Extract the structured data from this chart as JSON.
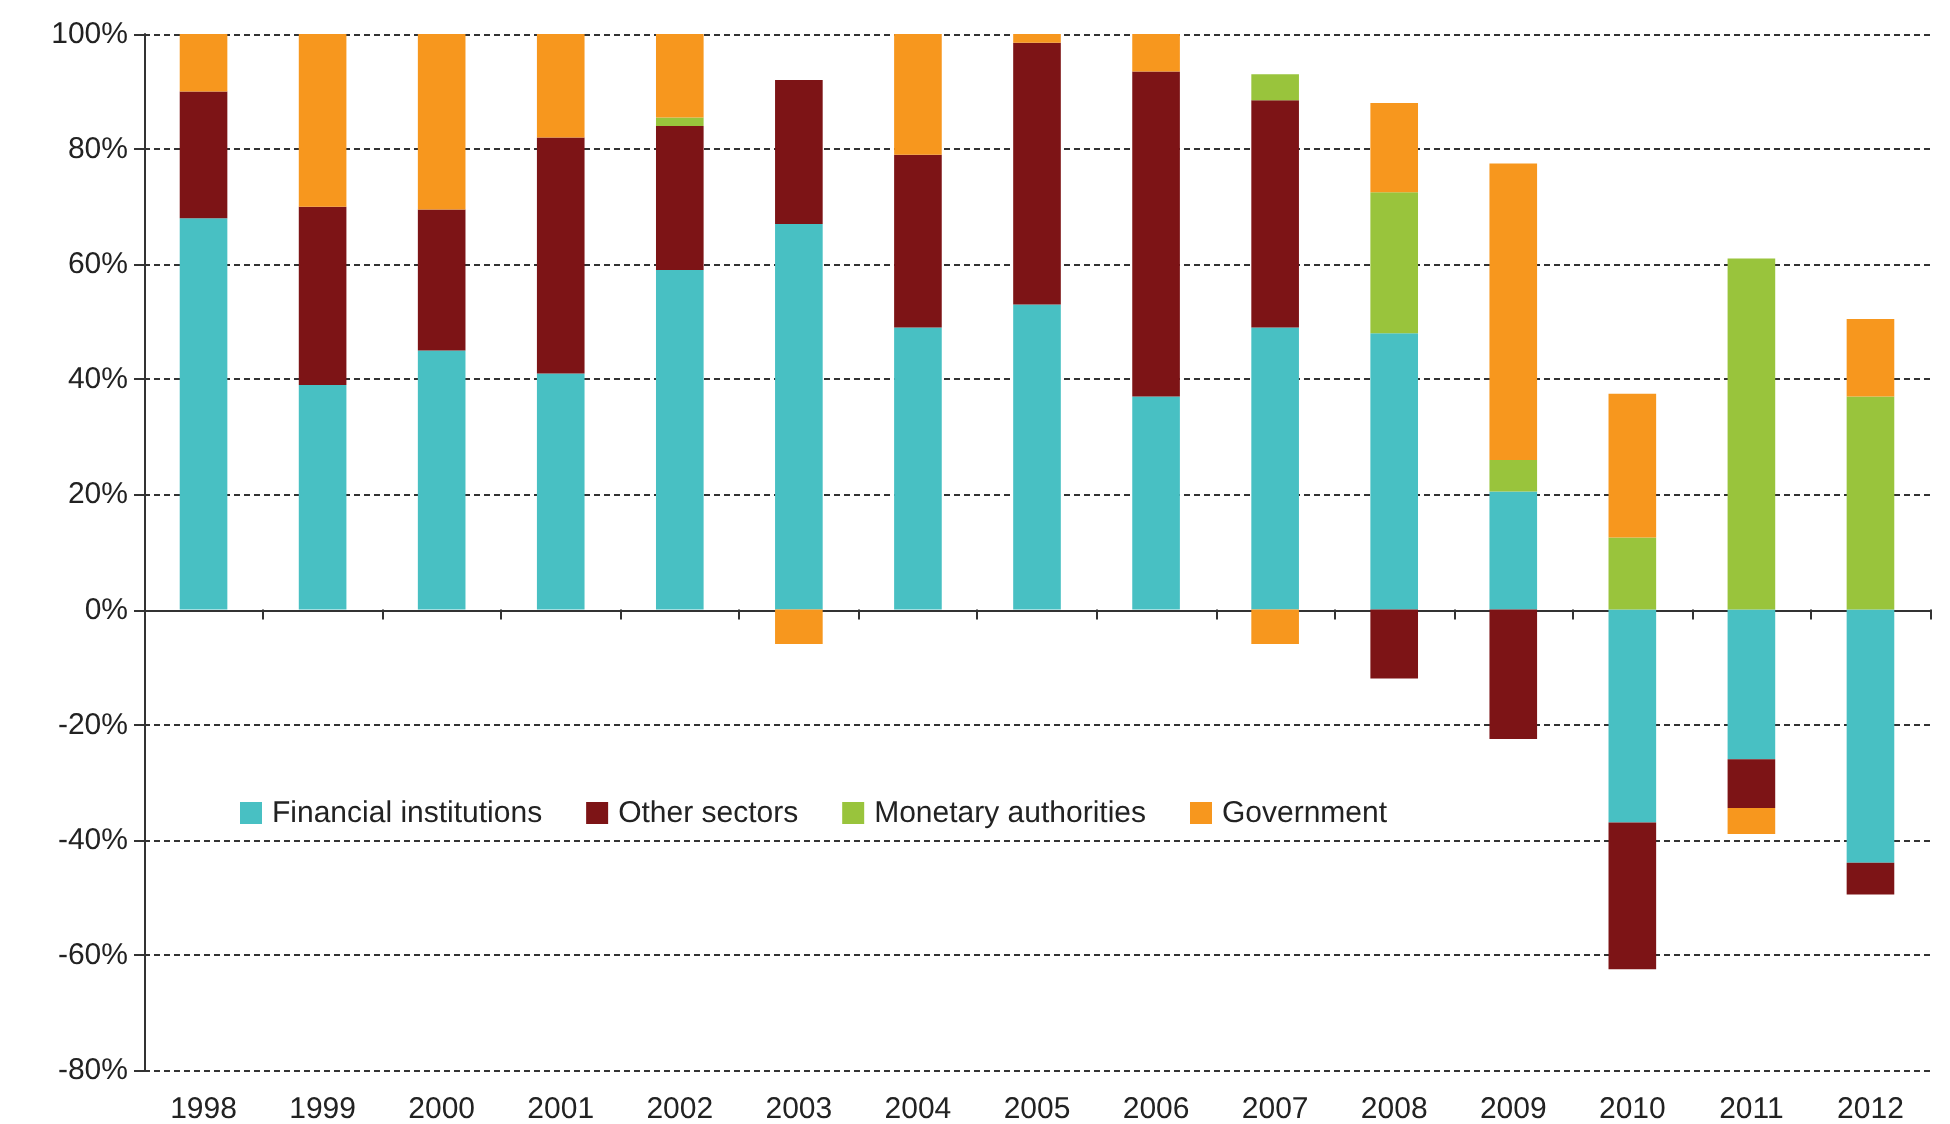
{
  "chart_data": {
    "type": "bar",
    "stacked": true,
    "categories": [
      "1998",
      "1999",
      "2000",
      "2001",
      "2002",
      "2003",
      "2004",
      "2005",
      "2006",
      "2007",
      "2008",
      "2009",
      "2010",
      "2011",
      "2012"
    ],
    "series": [
      {
        "name": "Financial institutions",
        "color": "#48c0c3",
        "values": [
          68,
          39,
          45,
          41,
          59,
          67,
          49,
          53,
          37,
          49,
          48,
          20.5,
          -37,
          -26,
          -44
        ]
      },
      {
        "name": "Other sectors",
        "color": "#7d1416",
        "values": [
          22,
          31,
          24.5,
          41,
          25,
          25,
          30,
          45.5,
          56.5,
          39.5,
          -12,
          -22.5,
          -25.5,
          -8.5,
          -5.5
        ]
      },
      {
        "name": "Monetary authorities",
        "color": "#99c43c",
        "values": [
          null,
          null,
          null,
          null,
          1.5,
          null,
          null,
          null,
          null,
          4.5,
          24.5,
          5.5,
          12.5,
          61,
          37
        ]
      },
      {
        "name": "Government",
        "color": "#f7971e",
        "values": [
          10,
          30,
          30.5,
          18,
          14.5,
          -6,
          21,
          1.5,
          6.5,
          -6,
          15.5,
          51.5,
          25,
          -4.5,
          13.5
        ]
      }
    ],
    "ylim": [
      -80,
      100
    ],
    "yticks": [
      {
        "value": -80,
        "label": "-80%"
      },
      {
        "value": -60,
        "label": "-60%"
      },
      {
        "value": -40,
        "label": "-40%"
      },
      {
        "value": -20,
        "label": "-20%"
      },
      {
        "value": 0,
        "label": "0%"
      },
      {
        "value": 20,
        "label": "20%"
      },
      {
        "value": 40,
        "label": "40%"
      },
      {
        "value": 60,
        "label": "60%"
      },
      {
        "value": 80,
        "label": "80%"
      },
      {
        "value": 100,
        "label": "100%"
      }
    ],
    "grid": "y",
    "legend": "bottom left"
  }
}
